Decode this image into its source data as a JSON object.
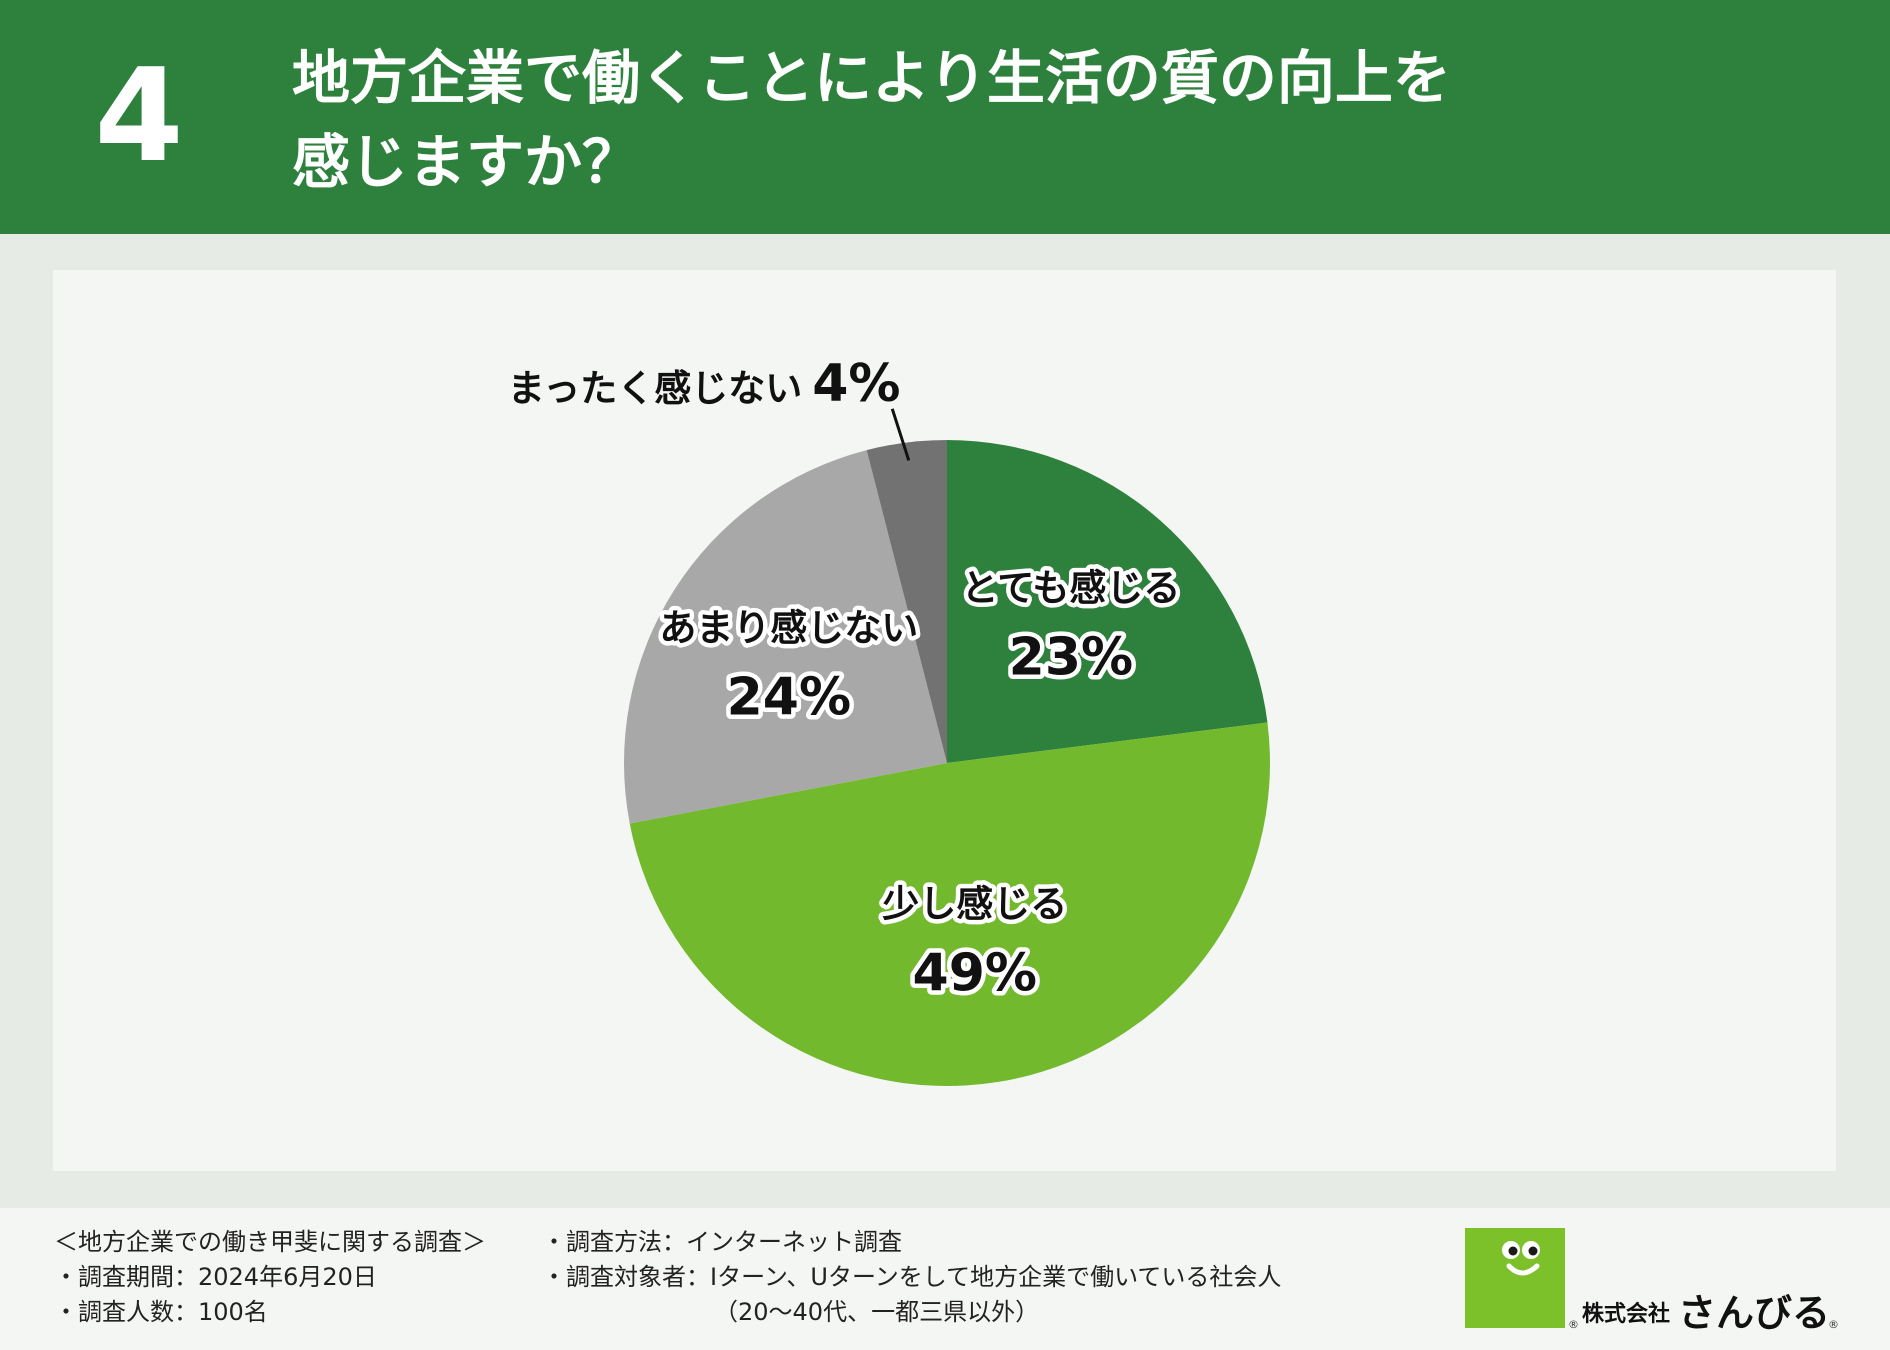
{
  "header": {
    "number": "4",
    "title_line1": "地方企業で働くことにより生活の質の向上を",
    "title_line2": "感じますか？"
  },
  "colors": {
    "header_bg": "#2e813c",
    "panel_bg": "#f4f6f3",
    "page_bg": "#e6ebe6"
  },
  "chart_data": {
    "type": "pie",
    "categories": [
      "とても感じる",
      "少し感じる",
      "あまり感じない",
      "まったく感じない"
    ],
    "values": [
      23,
      49,
      24,
      4
    ],
    "value_labels": [
      "23%",
      "49%",
      "24%",
      "4%"
    ],
    "colors": [
      "#2e813c",
      "#73b92e",
      "#a8a8a8",
      "#727272"
    ],
    "start": "12 o'clock",
    "direction": "clockwise"
  },
  "footer": {
    "survey_title": "＜地方企業での働き甲斐に関する調査＞",
    "period": "・調査期間：2024年6月20日",
    "count": "・調査人数：100名",
    "method": "・調査方法：インターネット調査",
    "target": "・調査対象者：Iターン、Uターンをして地方企業で働いている社会人",
    "target_note": "（20〜40代、一都三県以外）",
    "logo_company": "株式会社",
    "logo_name": "さんびる"
  }
}
